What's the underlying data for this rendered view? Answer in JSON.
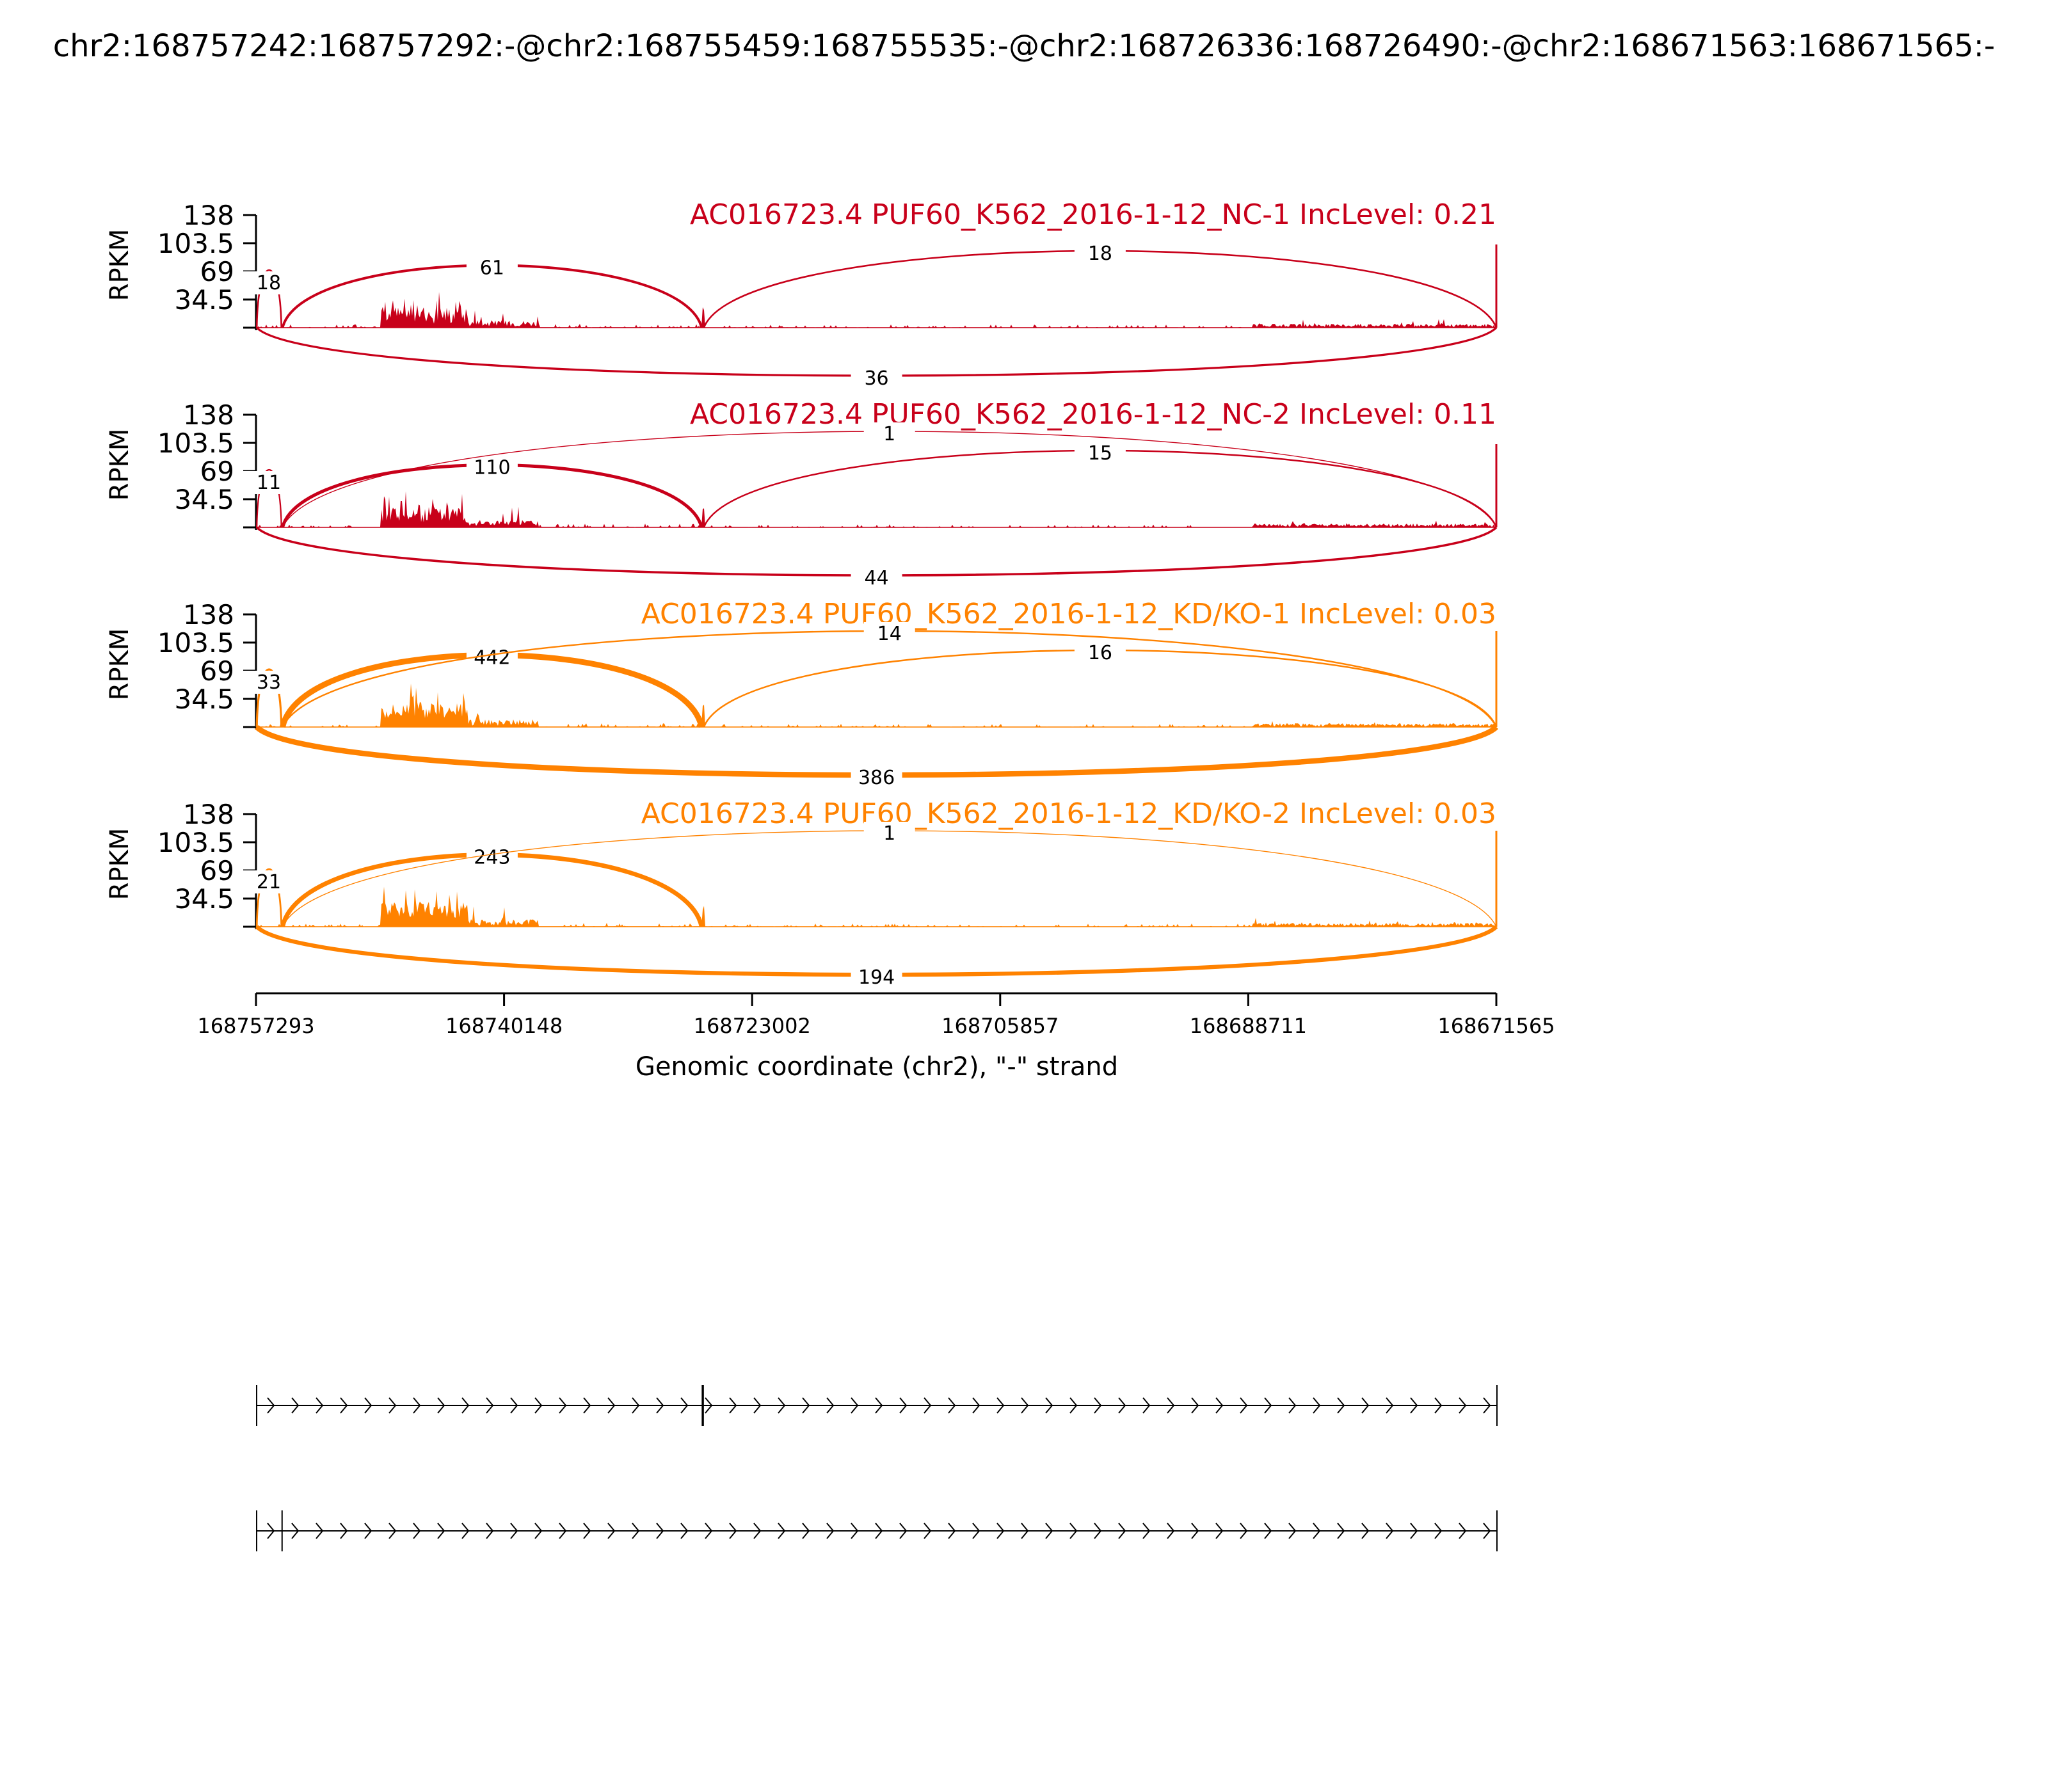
{
  "title": "chr2:168757242:168757292:-@chr2:168755459:168755535:-@chr2:168726336:168726490:-@chr2:168671563:168671565:-",
  "colors": {
    "nc": "#c8001a",
    "kd": "#ff8200",
    "axis": "#000000"
  },
  "chart_data": {
    "type": "sashimi",
    "xlabel": "Genomic coordinate (chr2), \"-\" strand",
    "x_ticks": [
      "168757293",
      "168740148",
      "168723002",
      "168705857",
      "168688711",
      "168671565"
    ],
    "x_range": [
      168757293,
      168671565
    ],
    "ylabel": "RPKM",
    "y_ticks": [
      "34.5",
      "69",
      "103.5",
      "138"
    ],
    "ylim": [
      0,
      138
    ],
    "panels": [
      {
        "label": "AC016723.4 PUF60_K562_2016-1-12_NC-1 IncLevel: 0.21",
        "color": "nc",
        "junctions": [
          {
            "start": 168757242,
            "end": 168755535,
            "count": "18"
          },
          {
            "start": 168755459,
            "end": 168726490,
            "count": "61"
          },
          {
            "start": 168726336,
            "end": 168671565,
            "count": "18"
          },
          {
            "start": 168757242,
            "end": 168671565,
            "count": "36"
          }
        ]
      },
      {
        "label": "AC016723.4 PUF60_K562_2016-1-12_NC-2 IncLevel: 0.11",
        "color": "nc",
        "junctions": [
          {
            "start": 168757242,
            "end": 168755535,
            "count": "11"
          },
          {
            "start": 168755459,
            "end": 168726490,
            "count": "110"
          },
          {
            "start": 168755459,
            "end": 168671565,
            "count": "1"
          },
          {
            "start": 168726336,
            "end": 168671565,
            "count": "15"
          },
          {
            "start": 168757242,
            "end": 168671565,
            "count": "44"
          }
        ]
      },
      {
        "label": "AC016723.4 PUF60_K562_2016-1-12_KD/KO-1 IncLevel: 0.03",
        "color": "kd",
        "junctions": [
          {
            "start": 168757242,
            "end": 168755535,
            "count": "33"
          },
          {
            "start": 168755459,
            "end": 168726490,
            "count": "442"
          },
          {
            "start": 168755459,
            "end": 168671565,
            "count": "14"
          },
          {
            "start": 168726336,
            "end": 168671565,
            "count": "16"
          },
          {
            "start": 168757242,
            "end": 168671565,
            "count": "386"
          }
        ]
      },
      {
        "label": "AC016723.4 PUF60_K562_2016-1-12_KD/KO-2 IncLevel: 0.03",
        "color": "kd",
        "junctions": [
          {
            "start": 168757242,
            "end": 168755535,
            "count": "21"
          },
          {
            "start": 168755459,
            "end": 168726490,
            "count": "243"
          },
          {
            "start": 168755459,
            "end": 168671565,
            "count": "1"
          },
          {
            "start": 168757242,
            "end": 168671565,
            "count": "194"
          }
        ]
      }
    ],
    "isoforms": [
      {
        "exons": [
          [
            168757292,
            168757242
          ],
          [
            168726490,
            168726336
          ],
          [
            168671565,
            168671563
          ]
        ]
      },
      {
        "exons": [
          [
            168757292,
            168757242
          ],
          [
            168755535,
            168755459
          ],
          [
            168671565,
            168671563
          ]
        ]
      }
    ]
  }
}
